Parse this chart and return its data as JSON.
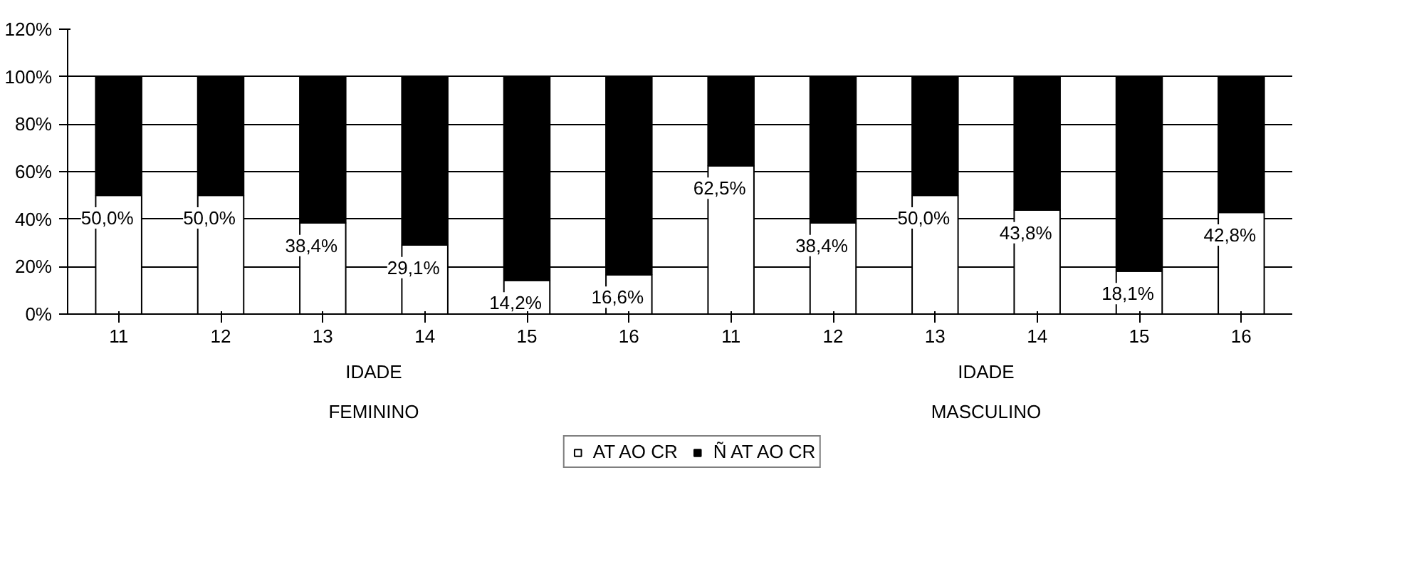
{
  "chart_data": {
    "type": "bar",
    "stacked": true,
    "categories": [
      "11",
      "12",
      "13",
      "14",
      "15",
      "16",
      "11",
      "12",
      "13",
      "14",
      "15",
      "16"
    ],
    "annotations": [
      "IDADE",
      "FEMININO",
      "IDADE",
      "MASCULINO"
    ],
    "series": [
      {
        "name": "AT AO CR",
        "color": "#ffffff",
        "values": [
          50.0,
          50.0,
          38.4,
          29.1,
          14.2,
          16.6,
          62.5,
          38.4,
          50.0,
          43.8,
          18.1,
          42.8
        ],
        "value_labels": [
          "50,0%",
          "50,0%",
          "38,4%",
          "29,1%",
          "14,2%",
          "16,6%",
          "62,5%",
          "38,4%",
          "50,0%",
          "43,8%",
          "18,1%",
          "42,8%"
        ]
      },
      {
        "name": "Ñ AT AO CR",
        "color": "#000000",
        "values": [
          50.0,
          50.0,
          61.6,
          70.9,
          85.8,
          83.4,
          37.5,
          61.6,
          50.0,
          56.2,
          81.9,
          57.2
        ]
      }
    ],
    "ylim": [
      0,
      120
    ],
    "yticks": [
      {
        "value": 0,
        "label": "0%"
      },
      {
        "value": 20,
        "label": "20%"
      },
      {
        "value": 40,
        "label": "40%"
      },
      {
        "value": 60,
        "label": "60%"
      },
      {
        "value": 80,
        "label": "80%"
      },
      {
        "value": 100,
        "label": "100%"
      },
      {
        "value": 120,
        "label": "120%"
      }
    ],
    "grid": "y",
    "legend": "bottom"
  }
}
